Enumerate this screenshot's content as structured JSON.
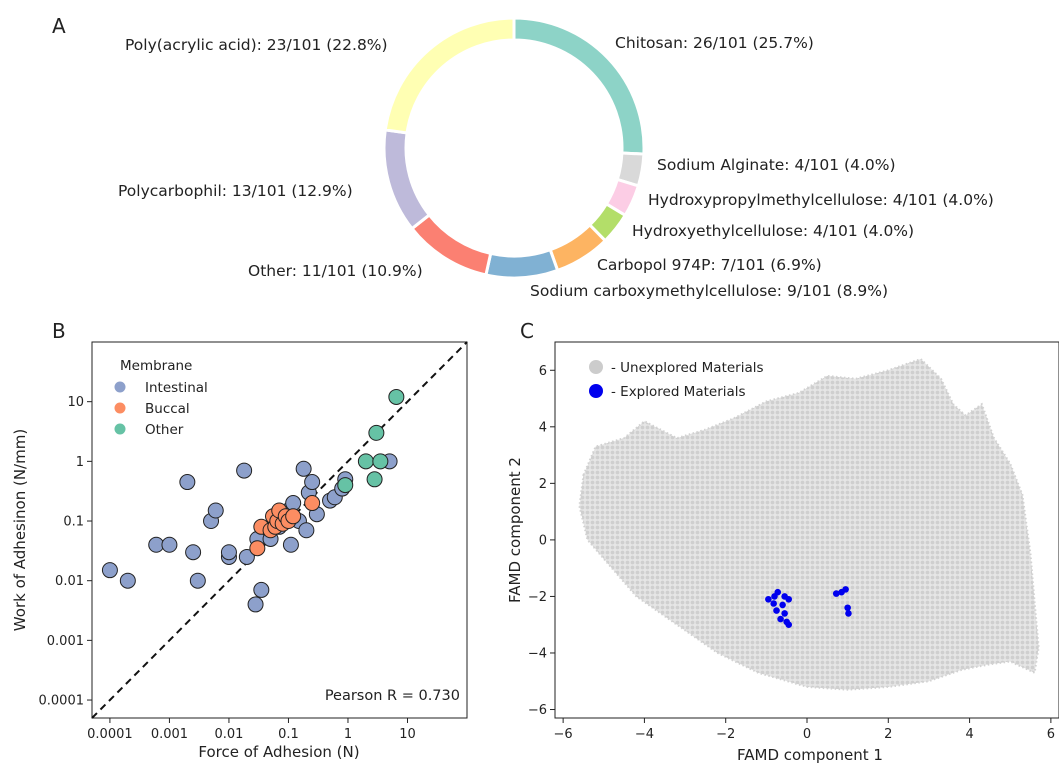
{
  "chart_data": [
    {
      "panel": "A",
      "type": "pie",
      "slices": [
        {
          "name": "Chitosan",
          "label": "Chitosan: 26/101 (25.7%)",
          "value": 26,
          "color": "#8dd3c7"
        },
        {
          "name": "Sodium Alginate",
          "label": "Sodium Alginate: 4/101 (4.0%)",
          "value": 4,
          "color": "#d9d9d9"
        },
        {
          "name": "Hydroxypropylmethylcellulose",
          "label": "Hydroxypropylmethylcellulose: 4/101 (4.0%)",
          "value": 4,
          "color": "#fccde5"
        },
        {
          "name": "Hydroxyethylcellulose",
          "label": "Hydroxyethylcellulose: 4/101 (4.0%)",
          "value": 4,
          "color": "#b3de69"
        },
        {
          "name": "Carbopol 974P",
          "label": "Carbopol 974P: 7/101 (6.9%)",
          "value": 7,
          "color": "#fdb462"
        },
        {
          "name": "Sodium carboxymethylcellulose",
          "label": "Sodium carboxymethylcellulose: 9/101 (8.9%)",
          "value": 9,
          "color": "#80b1d3"
        },
        {
          "name": "Other",
          "label": "Other: 11/101 (10.9%)",
          "value": 11,
          "color": "#fb8072"
        },
        {
          "name": "Polycarbophil",
          "label": "Polycarbophil: 13/101 (12.9%)",
          "value": 13,
          "color": "#bebada"
        },
        {
          "name": "Poly(acrylic acid)",
          "label": "Poly(acrylic acid): 23/101 (22.8%)",
          "value": 23,
          "color": "#ffffb3"
        }
      ]
    },
    {
      "panel": "B",
      "type": "scatter",
      "xscale": "log",
      "yscale": "log",
      "xlabel": "Force of Adhesion (N)",
      "ylabel": "Work of Adhesinon (N/mm)",
      "xlim": [
        5e-05,
        100
      ],
      "ylim": [
        5e-05,
        100
      ],
      "xticks": [
        0.0001,
        0.001,
        0.01,
        0.1,
        1,
        10
      ],
      "xtick_labels": [
        "0.0001",
        "0.001",
        "0.01",
        "0.1",
        "1",
        "10"
      ],
      "yticks": [
        0.0001,
        0.001,
        0.01,
        0.1,
        1,
        10
      ],
      "ytick_labels": [
        "0.0001",
        "0.001",
        "0.01",
        "0.1",
        "1",
        "10"
      ],
      "reference_line": "y = x",
      "annotation": "Pearson R = 0.730",
      "legend": {
        "title": "Membrane",
        "placement": "top-left"
      },
      "series": [
        {
          "name": "Intestinal",
          "color": "#8da0cb",
          "points": [
            [
              0.0001,
              0.015
            ],
            [
              0.0002,
              0.01
            ],
            [
              0.0006,
              0.04
            ],
            [
              0.001,
              0.04
            ],
            [
              0.002,
              0.45
            ],
            [
              0.0025,
              0.03
            ],
            [
              0.003,
              0.01
            ],
            [
              0.005,
              0.1
            ],
            [
              0.006,
              0.15
            ],
            [
              0.01,
              0.025
            ],
            [
              0.01,
              0.03
            ],
            [
              0.018,
              0.7
            ],
            [
              0.02,
              0.025
            ],
            [
              0.03,
              0.05
            ],
            [
              0.028,
              0.004
            ],
            [
              0.035,
              0.007
            ],
            [
              0.05,
              0.05
            ],
            [
              0.07,
              0.08
            ],
            [
              0.08,
              0.1
            ],
            [
              0.09,
              0.1
            ],
            [
              0.1,
              0.15
            ],
            [
              0.11,
              0.04
            ],
            [
              0.12,
              0.2
            ],
            [
              0.15,
              0.1
            ],
            [
              0.18,
              0.75
            ],
            [
              0.2,
              0.07
            ],
            [
              0.22,
              0.3
            ],
            [
              0.25,
              0.45
            ],
            [
              0.3,
              0.13
            ],
            [
              0.5,
              0.22
            ],
            [
              0.6,
              0.25
            ],
            [
              0.8,
              0.35
            ],
            [
              0.9,
              0.5
            ],
            [
              5,
              1.0
            ]
          ]
        },
        {
          "name": "Buccal",
          "color": "#fc8d62",
          "points": [
            [
              0.03,
              0.035
            ],
            [
              0.035,
              0.08
            ],
            [
              0.05,
              0.07
            ],
            [
              0.055,
              0.12
            ],
            [
              0.06,
              0.08
            ],
            [
              0.065,
              0.1
            ],
            [
              0.07,
              0.15
            ],
            [
              0.08,
              0.09
            ],
            [
              0.09,
              0.12
            ],
            [
              0.1,
              0.1
            ],
            [
              0.12,
              0.12
            ],
            [
              0.25,
              0.2
            ]
          ]
        },
        {
          "name": "Other",
          "color": "#66c2a5",
          "points": [
            [
              0.9,
              0.4
            ],
            [
              2,
              1.0
            ],
            [
              2.8,
              0.5
            ],
            [
              3,
              3.0
            ],
            [
              3.5,
              1.0
            ],
            [
              6.5,
              12
            ]
          ]
        }
      ]
    },
    {
      "panel": "C",
      "type": "scatter",
      "xlabel": "FAMD component 1",
      "ylabel": "FAMD component 2",
      "xlim": [
        -6.2,
        6.2
      ],
      "ylim": [
        -6.3,
        7.0
      ],
      "xticks": [
        -6,
        -4,
        -2,
        0,
        2,
        4,
        6
      ],
      "xtick_labels": [
        "−6",
        "−4",
        "−2",
        "0",
        "2",
        "4",
        "6"
      ],
      "yticks": [
        -6,
        -4,
        -2,
        0,
        2,
        4,
        6
      ],
      "ytick_labels": [
        "−6",
        "−4",
        "−2",
        "0",
        "2",
        "4",
        "6"
      ],
      "legend": {
        "placement": "top-left"
      },
      "series": [
        {
          "name": "- Unexplored Materials",
          "color": "#cccccc",
          "description_region": {
            "x_range": [
              -5.6,
              5.6
            ],
            "y_range": [
              -5.6,
              6.6
            ]
          }
        },
        {
          "name": "- Explored Materials",
          "color": "#0000ee",
          "points": [
            [
              -0.95,
              -2.1
            ],
            [
              -0.8,
              -2.0
            ],
            [
              -0.72,
              -1.85
            ],
            [
              -0.55,
              -2.0
            ],
            [
              -0.82,
              -2.25
            ],
            [
              -0.6,
              -2.3
            ],
            [
              -0.45,
              -2.1
            ],
            [
              -0.75,
              -2.5
            ],
            [
              -0.55,
              -2.6
            ],
            [
              -0.65,
              -2.8
            ],
            [
              -0.5,
              -2.9
            ],
            [
              -0.45,
              -3.0
            ],
            [
              0.72,
              -1.9
            ],
            [
              0.85,
              -1.85
            ],
            [
              0.95,
              -1.75
            ],
            [
              1.0,
              -2.4
            ],
            [
              1.02,
              -2.6
            ]
          ]
        }
      ]
    }
  ],
  "panels": {
    "a_letter": "A",
    "b_letter": "B",
    "c_letter": "C"
  }
}
